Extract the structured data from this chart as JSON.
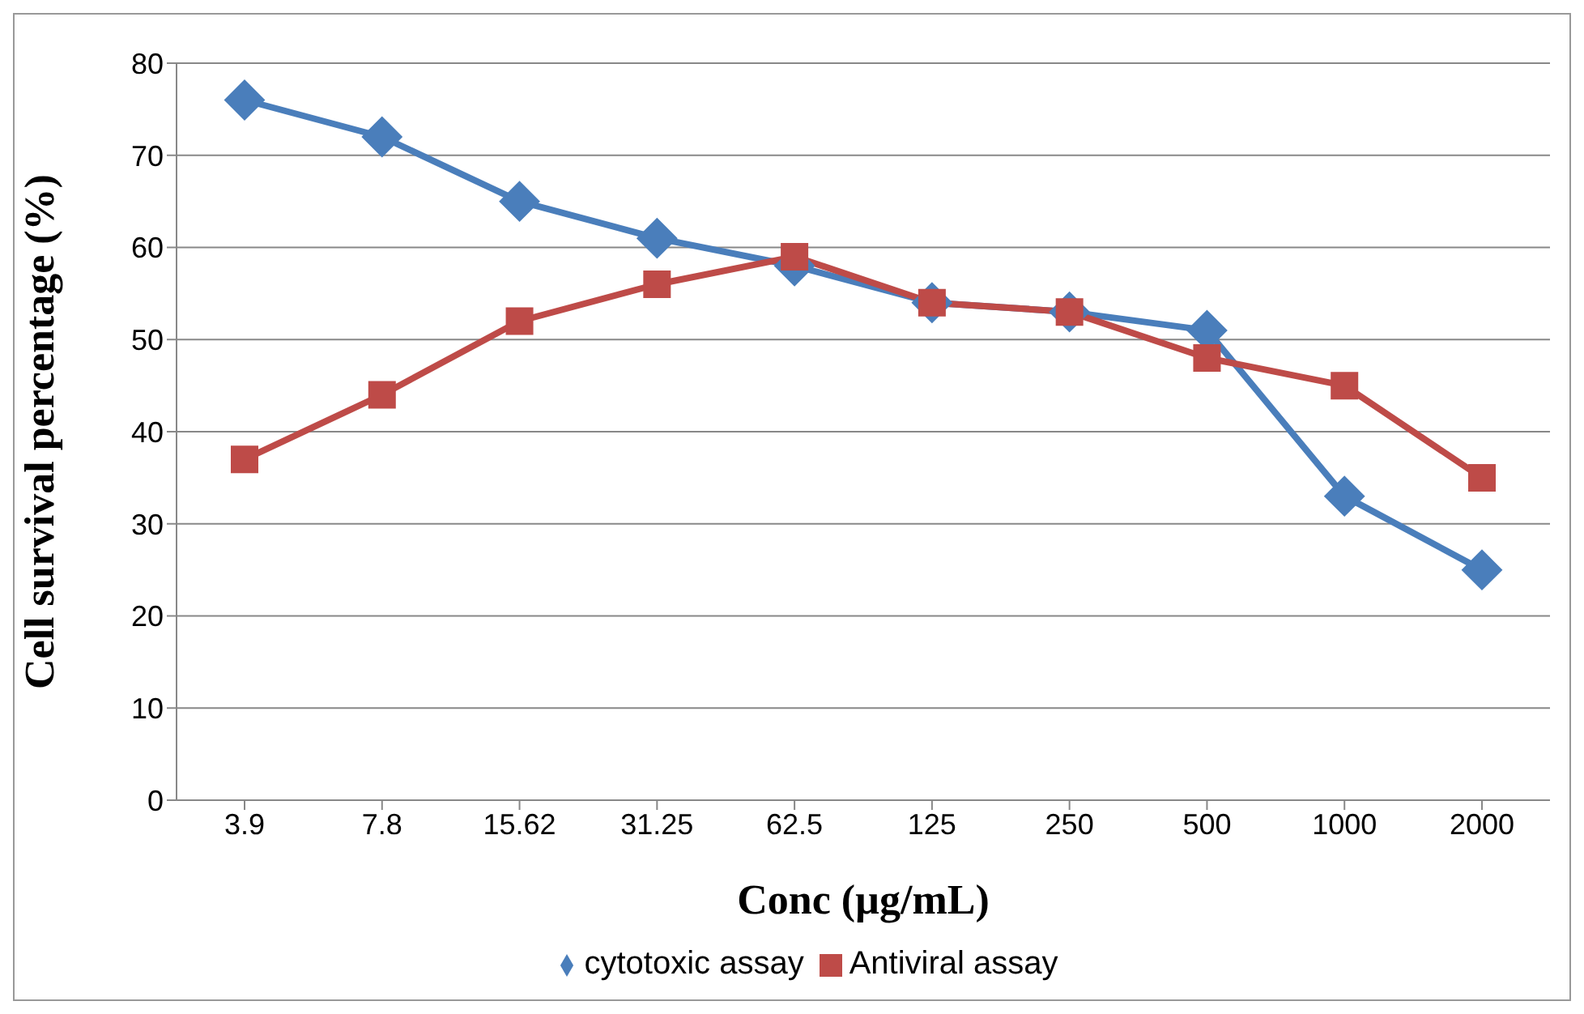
{
  "chart_data": {
    "type": "line",
    "xlabel": "Conc (µg/mL)",
    "ylabel": "Cell survival percentage (%)",
    "categories": [
      "3.9",
      "7.8",
      "15.62",
      "31.25",
      "62.5",
      "125",
      "250",
      "500",
      "1000",
      "2000"
    ],
    "series": [
      {
        "name": "cytotoxic assay",
        "color": "#4a7ebb",
        "marker": "diamond",
        "values": [
          76,
          72,
          65,
          61,
          58,
          54,
          53,
          51,
          33,
          25
        ]
      },
      {
        "name": "Antiviral assay",
        "color": "#be4b48",
        "marker": "square",
        "values": [
          37,
          44,
          52,
          56,
          59,
          54,
          53,
          48,
          45,
          35
        ]
      }
    ],
    "ylim": [
      0,
      80
    ],
    "yticks": [
      0,
      10,
      20,
      30,
      40,
      50,
      60,
      70,
      80
    ],
    "grid": "y",
    "legend": "bottom",
    "line_style": "solid"
  }
}
